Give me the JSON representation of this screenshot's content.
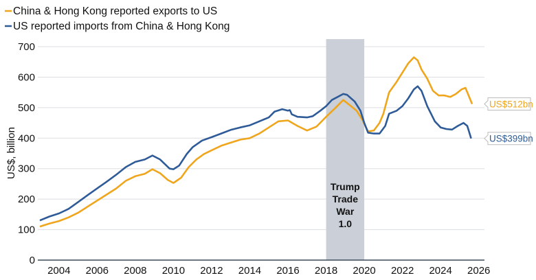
{
  "chart_data": {
    "type": "line",
    "title": "",
    "xlabel": "",
    "ylabel": "US$, billion",
    "xlim": [
      2003,
      2026
    ],
    "ylim": [
      0,
      700
    ],
    "x_ticks": [
      "2004",
      "2006",
      "2008",
      "2010",
      "2012",
      "2014",
      "2016",
      "2018",
      "2020",
      "2022",
      "2024",
      "2026"
    ],
    "y_ticks": [
      "0",
      "100",
      "200",
      "300",
      "400",
      "500",
      "600",
      "700"
    ],
    "grid": "horizontal",
    "legend_position": "top-left",
    "shaded_region": {
      "from": 2018,
      "to": 2020,
      "label": [
        "Trump",
        "Trade",
        "War",
        "1.0"
      ],
      "color": "#CBD0D8"
    },
    "series": [
      {
        "name": "China & Hong Kong reported exports to US",
        "color": "#EFA51C",
        "end_label": "US$512bn",
        "x": [
          2003,
          2003.5,
          2004,
          2004.5,
          2005,
          2005.5,
          2006,
          2006.5,
          2007,
          2007.5,
          2008,
          2008.5,
          2008.9,
          2009.3,
          2009.7,
          2010,
          2010.4,
          2010.8,
          2011.2,
          2011.6,
          2012,
          2012.5,
          2013,
          2013.5,
          2014,
          2014.5,
          2015,
          2015.5,
          2016,
          2016.5,
          2017,
          2017.5,
          2018,
          2018.5,
          2018.9,
          2019.2,
          2019.6,
          2019.9,
          2020.2,
          2020.5,
          2020.8,
          2021,
          2021.3,
          2021.7,
          2022,
          2022.3,
          2022.6,
          2022.8,
          2023,
          2023.3,
          2023.6,
          2023.9,
          2024.2,
          2024.5,
          2024.8,
          2025.1,
          2025.3,
          2025.5,
          2025.65
        ],
        "y": [
          110,
          120,
          128,
          140,
          155,
          175,
          195,
          215,
          235,
          260,
          275,
          283,
          298,
          285,
          263,
          253,
          270,
          305,
          330,
          348,
          360,
          375,
          385,
          395,
          400,
          415,
          435,
          455,
          458,
          440,
          425,
          438,
          470,
          500,
          525,
          510,
          490,
          460,
          422,
          425,
          450,
          480,
          550,
          585,
          615,
          645,
          665,
          655,
          625,
          595,
          555,
          540,
          540,
          535,
          545,
          560,
          565,
          535,
          512
        ]
      },
      {
        "name": "US reported imports from China & Hong Kong",
        "color": "#2E5B98",
        "end_label": "US$399bn",
        "x": [
          2003,
          2003.5,
          2004,
          2004.5,
          2005,
          2005.5,
          2006,
          2006.5,
          2007,
          2007.5,
          2008,
          2008.5,
          2008.9,
          2009.3,
          2009.8,
          2010,
          2010.3,
          2010.7,
          2011,
          2011.5,
          2012,
          2012.5,
          2013,
          2013.5,
          2014,
          2014.5,
          2015,
          2015.3,
          2015.7,
          2016,
          2016.1,
          2016.2,
          2016.5,
          2017,
          2017.3,
          2017.7,
          2018,
          2018.3,
          2018.6,
          2018.9,
          2019.1,
          2019.5,
          2019.8,
          2020,
          2020.2,
          2020.5,
          2020.8,
          2021.1,
          2021.3,
          2021.7,
          2022,
          2022.3,
          2022.6,
          2022.8,
          2023,
          2023.3,
          2023.7,
          2024,
          2024.3,
          2024.6,
          2024.9,
          2025.2,
          2025.4,
          2025.6
        ],
        "y": [
          130,
          143,
          153,
          168,
          190,
          213,
          235,
          257,
          280,
          305,
          322,
          330,
          343,
          330,
          300,
          298,
          310,
          348,
          370,
          392,
          403,
          415,
          427,
          435,
          442,
          455,
          468,
          487,
          495,
          490,
          492,
          478,
          470,
          468,
          472,
          490,
          505,
          525,
          535,
          545,
          542,
          520,
          490,
          450,
          418,
          415,
          415,
          440,
          480,
          490,
          505,
          530,
          560,
          570,
          555,
          505,
          455,
          435,
          430,
          428,
          440,
          450,
          440,
          399
        ]
      }
    ]
  }
}
